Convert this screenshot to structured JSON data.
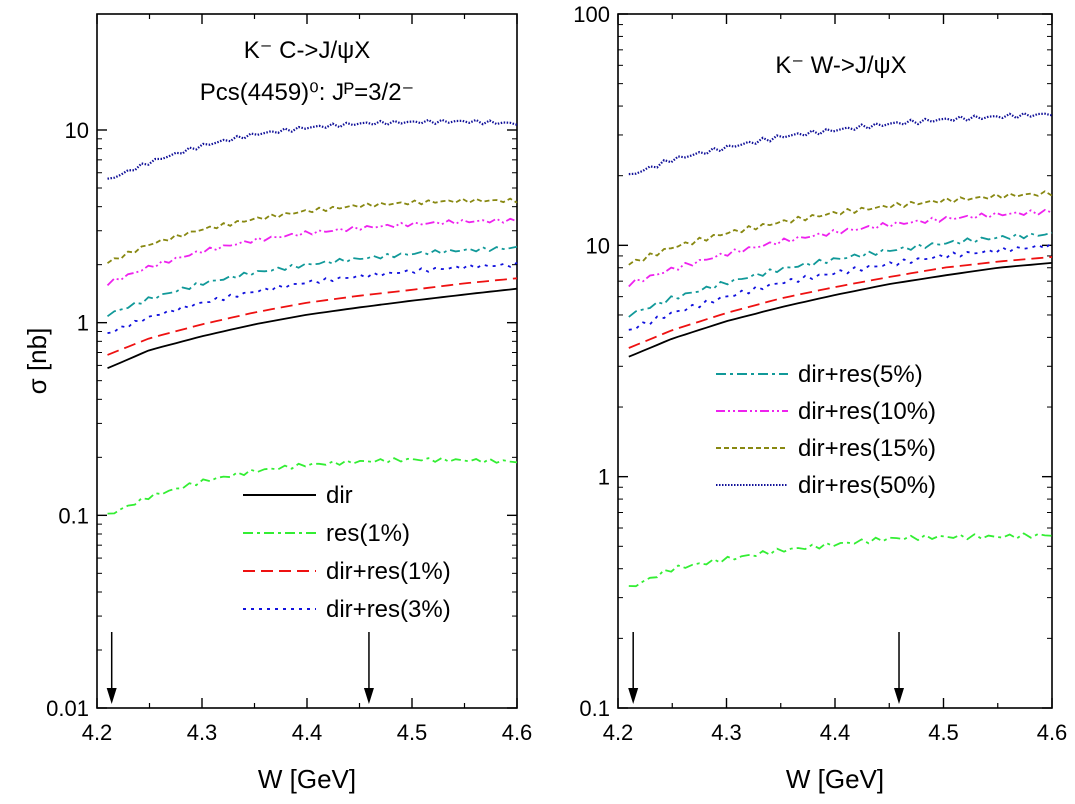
{
  "colors": {
    "dir": "#000000",
    "res": "#33ee33",
    "dir_res_1": "#ee1111",
    "dir_res_3": "#1111dd",
    "dir_res_5": "#119999",
    "dir_res_10": "#ee22ee",
    "dir_res_15": "#888811",
    "dir_res_50": "#111199"
  },
  "chart_data": [
    {
      "type": "line",
      "title": "K⁻ C->J/ψX",
      "subtitle": "Pcs(4459)⁰: Jᴾ=3/2⁻",
      "xlabel": "W [GeV]",
      "ylabel": "σ [nb]",
      "xlim": [
        4.2,
        4.6
      ],
      "ylim": [
        0.01,
        40
      ],
      "yscale": "log",
      "xticks": [
        "4.2",
        "4.3",
        "4.4",
        "4.5",
        "4.6"
      ],
      "yticks": [
        "0.01",
        "0.1",
        "1",
        "10"
      ],
      "ytick_values": [
        0.01,
        0.1,
        1,
        10
      ],
      "arrows_at_x": [
        4.214,
        4.459
      ],
      "legend_position": "lower-right",
      "x": [
        4.21,
        4.25,
        4.3,
        4.35,
        4.4,
        4.45,
        4.5,
        4.55,
        4.6
      ],
      "series": [
        {
          "name": "dir",
          "style": "solid",
          "color_key": "dir",
          "values": [
            0.58,
            0.72,
            0.85,
            0.98,
            1.1,
            1.2,
            1.3,
            1.4,
            1.5
          ]
        },
        {
          "name": "res(1%)",
          "style": "dashdot",
          "color_key": "res",
          "values": [
            0.1,
            0.125,
            0.15,
            0.17,
            0.183,
            0.19,
            0.195,
            0.193,
            0.19
          ]
        },
        {
          "name": "dir+res(1%)",
          "style": "dashed",
          "color_key": "dir_res_1",
          "values": [
            0.68,
            0.83,
            0.98,
            1.13,
            1.27,
            1.38,
            1.48,
            1.6,
            1.7
          ]
        },
        {
          "name": "dir+res(3%)",
          "style": "dotted",
          "color_key": "dir_res_3",
          "values": [
            0.88,
            1.07,
            1.27,
            1.45,
            1.62,
            1.74,
            1.85,
            1.95,
            2.0
          ]
        },
        {
          "name": "dir+res(5%)",
          "style": "dashdot",
          "color_key": "dir_res_5",
          "values": [
            1.1,
            1.33,
            1.6,
            1.82,
            2.0,
            2.15,
            2.28,
            2.38,
            2.45
          ]
        },
        {
          "name": "dir+res(10%)",
          "style": "dashdotdot",
          "color_key": "dir_res_10",
          "values": [
            1.6,
            1.95,
            2.35,
            2.68,
            2.92,
            3.1,
            3.25,
            3.35,
            3.4
          ]
        },
        {
          "name": "dir+res(15%)",
          "style": "shortdash",
          "color_key": "dir_res_15",
          "values": [
            2.05,
            2.55,
            3.05,
            3.45,
            3.8,
            4.05,
            4.2,
            4.3,
            4.3
          ]
        },
        {
          "name": "dir+res(50%)",
          "style": "finedot",
          "color_key": "dir_res_50",
          "values": [
            5.5,
            6.8,
            8.3,
            9.5,
            10.3,
            10.8,
            11.0,
            11.1,
            10.8
          ]
        }
      ]
    },
    {
      "type": "line",
      "title": "K⁻ W->J/ψX",
      "xlabel": "W [GeV]",
      "ylabel": "",
      "xlim": [
        4.2,
        4.6
      ],
      "ylim": [
        0.1,
        100
      ],
      "yscale": "log",
      "xticks": [
        "4.2",
        "4.3",
        "4.4",
        "4.5",
        "4.6"
      ],
      "yticks": [
        "0.1",
        "1",
        "10",
        "100"
      ],
      "ytick_values": [
        0.1,
        1,
        10,
        100
      ],
      "arrows_at_x": [
        4.214,
        4.459
      ],
      "legend_position": "center-right",
      "x": [
        4.21,
        4.25,
        4.3,
        4.35,
        4.4,
        4.45,
        4.5,
        4.55,
        4.6
      ],
      "series": [
        {
          "name": "dir",
          "style": "solid",
          "color_key": "dir",
          "values": [
            3.3,
            3.95,
            4.7,
            5.4,
            6.1,
            6.8,
            7.4,
            8.0,
            8.4
          ]
        },
        {
          "name": "res(1%)",
          "style": "dashdot",
          "color_key": "res",
          "values": [
            0.33,
            0.4,
            0.44,
            0.48,
            0.51,
            0.54,
            0.55,
            0.55,
            0.56
          ]
        },
        {
          "name": "dir+res(1%)",
          "style": "dashed",
          "color_key": "dir_res_1",
          "values": [
            3.6,
            4.3,
            5.1,
            5.9,
            6.6,
            7.3,
            8.0,
            8.5,
            8.9
          ]
        },
        {
          "name": "dir+res(3%)",
          "style": "dotted",
          "color_key": "dir_res_3",
          "values": [
            4.3,
            5.1,
            6.0,
            6.9,
            7.6,
            8.3,
            9.0,
            9.5,
            10.0
          ]
        },
        {
          "name": "dir+res(5%)",
          "style": "dashdot",
          "color_key": "dir_res_5",
          "values": [
            5.0,
            5.9,
            6.9,
            7.9,
            8.7,
            9.5,
            10.2,
            10.8,
            11.2
          ]
        },
        {
          "name": "dir+res(10%)",
          "style": "dashdotdot",
          "color_key": "dir_res_10",
          "values": [
            6.8,
            7.9,
            9.2,
            10.4,
            11.4,
            12.3,
            13.0,
            13.6,
            14.0
          ]
        },
        {
          "name": "dir+res(15%)",
          "style": "shortdash",
          "color_key": "dir_res_15",
          "values": [
            8.3,
            9.8,
            11.3,
            12.6,
            13.8,
            14.8,
            15.6,
            16.3,
            16.8
          ]
        },
        {
          "name": "dir+res(50%)",
          "style": "finedot",
          "color_key": "dir_res_50",
          "values": [
            20,
            23.5,
            26.5,
            29.5,
            31.5,
            33.5,
            35,
            36,
            37
          ]
        }
      ]
    }
  ]
}
